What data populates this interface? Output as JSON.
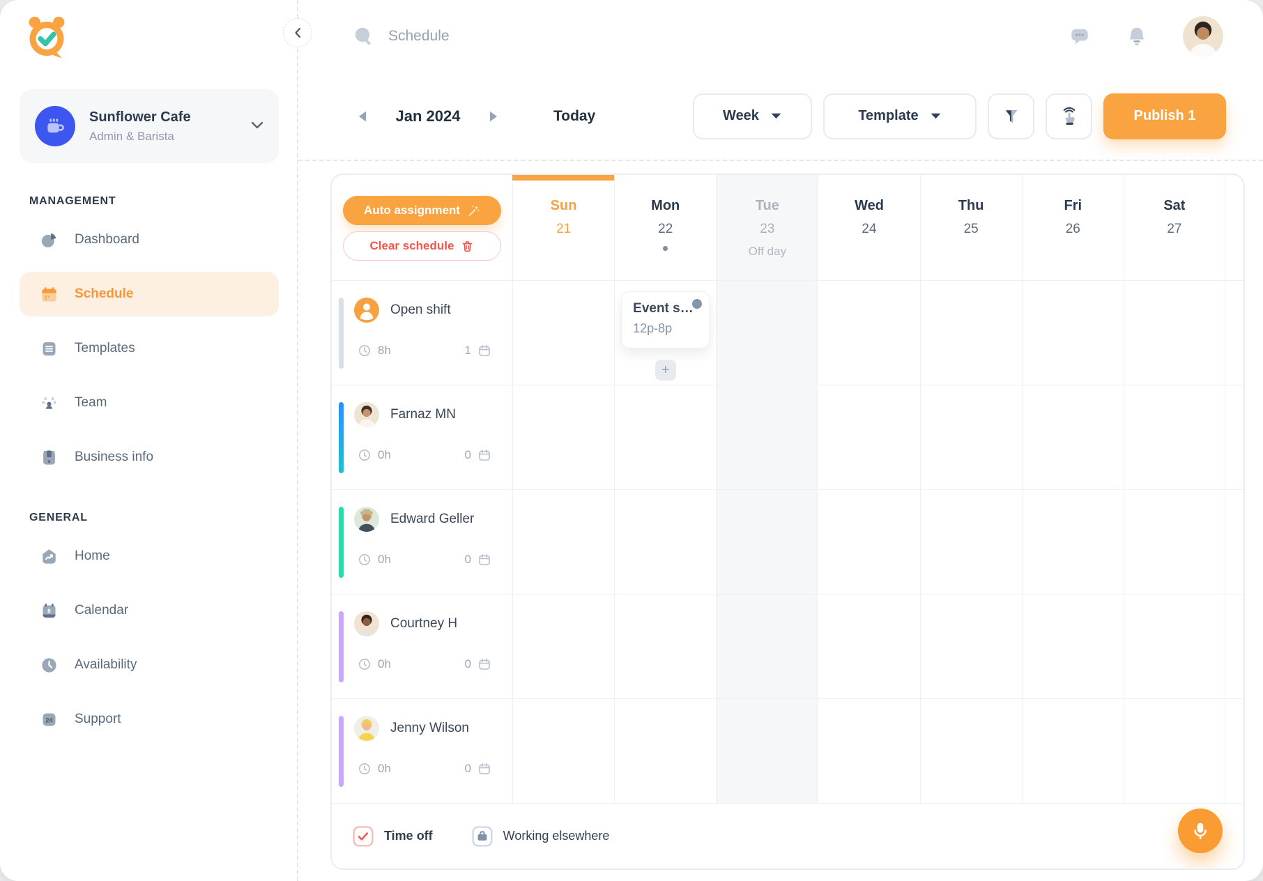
{
  "sidebar": {
    "workspace": {
      "name": "Sunflower Cafe",
      "role": "Admin & Barista",
      "avatar_icon": "coffee-cup-icon"
    },
    "sections": [
      {
        "title": "MANAGEMENT",
        "items": [
          {
            "label": "Dashboard",
            "icon": "dashboard-icon",
            "active": false
          },
          {
            "label": "Schedule",
            "icon": "schedule-icon",
            "active": true
          },
          {
            "label": "Templates",
            "icon": "templates-icon",
            "active": false
          },
          {
            "label": "Team",
            "icon": "team-icon",
            "active": false
          },
          {
            "label": "Business info",
            "icon": "business-info-icon",
            "active": false
          }
        ]
      },
      {
        "title": "GENERAL",
        "items": [
          {
            "label": "Home",
            "icon": "home-icon",
            "active": false
          },
          {
            "label": "Calendar",
            "icon": "calendar-icon",
            "active": false
          },
          {
            "label": "Availability",
            "icon": "availability-icon",
            "active": false
          },
          {
            "label": "Support",
            "icon": "support-icon",
            "active": false
          }
        ]
      }
    ]
  },
  "header": {
    "title": "Schedule"
  },
  "toolbar": {
    "month": "Jan 2024",
    "today_label": "Today",
    "view_label": "Week",
    "template_label": "Template",
    "publish_label": "Publish 1"
  },
  "schedule": {
    "actions": {
      "auto_label": "Auto assignment",
      "clear_label": "Clear schedule"
    },
    "days": [
      {
        "name": "Sun",
        "date": "21",
        "today": true,
        "off": false,
        "dot": false,
        "note": ""
      },
      {
        "name": "Mon",
        "date": "22",
        "today": false,
        "off": false,
        "dot": true,
        "note": ""
      },
      {
        "name": "Tue",
        "date": "23",
        "today": false,
        "off": true,
        "dot": false,
        "note": "Off day"
      },
      {
        "name": "Wed",
        "date": "24",
        "today": false,
        "off": false,
        "dot": false,
        "note": ""
      },
      {
        "name": "Thu",
        "date": "25",
        "today": false,
        "off": false,
        "dot": false,
        "note": ""
      },
      {
        "name": "Fri",
        "date": "26",
        "today": false,
        "off": false,
        "dot": false,
        "note": ""
      },
      {
        "name": "Sat",
        "date": "27",
        "today": false,
        "off": false,
        "dot": false,
        "note": ""
      }
    ],
    "rows": [
      {
        "name": "Open shift",
        "hours": "8h",
        "count": "1",
        "bar": {
          "from": "#D9DFE6",
          "to": "#D9DFE6"
        },
        "avatar": {
          "type": "open",
          "bg": "#F9A03F"
        }
      },
      {
        "name": "Farnaz MN",
        "hours": "0h",
        "count": "0",
        "bar": {
          "from": "#2E8DFF",
          "to": "#1FC0CF"
        },
        "avatar": {
          "type": "person",
          "bg": "#EFE4D2",
          "skin": "#C8916B",
          "hair": "#3A302B",
          "shirt": "#F7F5F2",
          "hat": false
        }
      },
      {
        "name": "Edward Geller",
        "hours": "0h",
        "count": "0",
        "bar": {
          "from": "#2FD8A8",
          "to": "#2FD8A8"
        },
        "avatar": {
          "type": "person",
          "bg": "#DCE8DC",
          "skin": "#C8916B",
          "hair": "#C9B489",
          "shirt": "#42505C",
          "hat": true
        }
      },
      {
        "name": "Courtney H",
        "hours": "0h",
        "count": "0",
        "bar": {
          "from": "#C9A8FA",
          "to": "#C9A8FA"
        },
        "avatar": {
          "type": "person",
          "bg": "#F3E2D2",
          "skin": "#8D5C3C",
          "hair": "#2E2620",
          "shirt": "#E8E3DC",
          "hat": false
        }
      },
      {
        "name": "Jenny Wilson",
        "hours": "0h",
        "count": "0",
        "bar": {
          "from": "#C9A8FA",
          "to": "#C9A8FA"
        },
        "avatar": {
          "type": "person",
          "bg": "#F1EEE8",
          "skin": "#F0BA90",
          "hair": "#F2CD5C",
          "shirt": "#F5D44A",
          "hat": false
        }
      }
    ],
    "event": {
      "row": 0,
      "day": 1,
      "title": "Event s…",
      "time": "12p-8p"
    },
    "legend": [
      {
        "label": "Time off",
        "icon": "time-off-icon"
      },
      {
        "label": "Working elsewhere",
        "icon": "working-elsewhere-icon"
      }
    ]
  },
  "user": {
    "avatar": {
      "type": "person",
      "bg": "#EFE3D0",
      "skin": "#BE8A60",
      "hair": "#2C2520",
      "shirt": "#FBFAF8",
      "hat": false
    }
  },
  "colors": {
    "accent": "#F9A341",
    "today": "#F9A03F",
    "danger": "#F0564A",
    "active_nav_bg": "#FDF0E2",
    "offday_bg": "#F5F7F9"
  }
}
